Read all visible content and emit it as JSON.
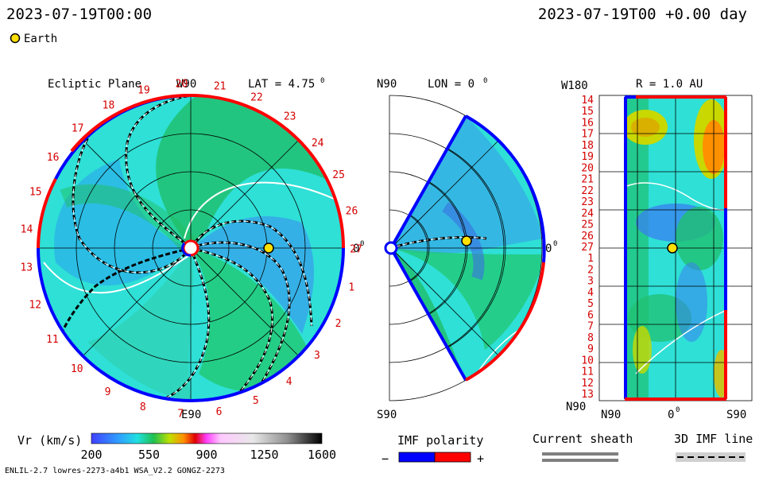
{
  "header": {
    "time_left": "2023-07-19T00:00",
    "time_right": "2023-07-19T00 +0.00 day",
    "earth_label": "Earth"
  },
  "ecliptic": {
    "title": "Ecliptic Plane",
    "top_label": "W90",
    "bottom_label": "E90",
    "right_label": "0",
    "lat_label": "LAT = 4.75",
    "lat_deg": "0",
    "right_deg": "0",
    "carrington_ticks": [
      "1",
      "2",
      "3",
      "4",
      "5",
      "6",
      "7",
      "8",
      "9",
      "10",
      "11",
      "12",
      "13",
      "14",
      "15",
      "16",
      "17",
      "18",
      "19",
      "20",
      "21",
      "22",
      "23",
      "24",
      "25",
      "26",
      "27"
    ]
  },
  "meridional": {
    "top_left": "N90",
    "bottom_left": "S90",
    "lon_label": "LON = 0",
    "lon_deg": "0",
    "right_label": "0",
    "right_deg": "0"
  },
  "radial": {
    "top_left": "W180",
    "bottom_left": "N90",
    "r_label": "R = 1.0 AU",
    "left_ticks": [
      "14",
      "15",
      "16",
      "17",
      "18",
      "19",
      "20",
      "21",
      "22",
      "23",
      "24",
      "25",
      "26",
      "27",
      "1",
      "2",
      "3",
      "4",
      "5",
      "6",
      "7",
      "8",
      "9",
      "10",
      "11",
      "12",
      "13"
    ],
    "bottom_mid": "0",
    "bottom_mid_deg": "0",
    "bottom_right": "S90"
  },
  "legend": {
    "vr_label": "Vr (km/s)",
    "vr_ticks": [
      "200",
      "550",
      "900",
      "1250",
      "1600"
    ],
    "imf_label": "IMF polarity",
    "imf_minus": "−",
    "imf_plus": "+",
    "sheath_label": "Current sheath",
    "imf3d_label": "3D IMF line"
  },
  "footer": {
    "model_info": "ENLIL-2.7 lowres-2273-a4b1 WSA_V2.2 GONGZ-2273"
  },
  "colors": {
    "positive_polarity": "#ff0000",
    "negative_polarity": "#0000ff",
    "earth": "#ffe000",
    "tick_text": "#d40000"
  }
}
